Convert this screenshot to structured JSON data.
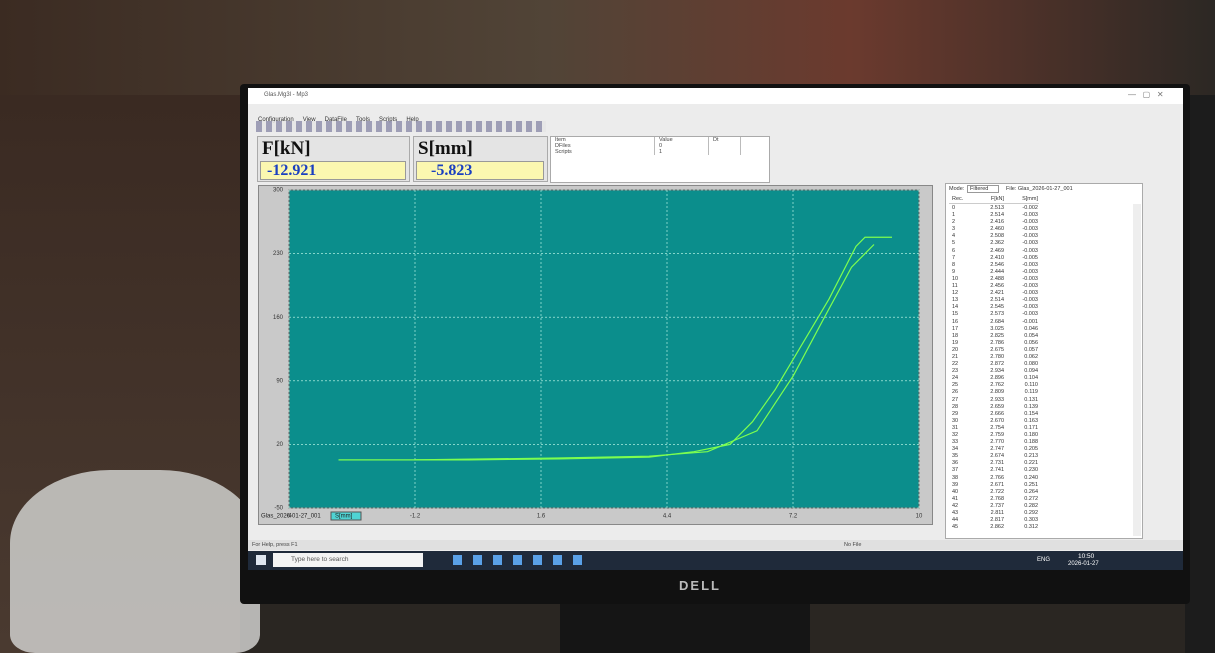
{
  "window": {
    "title": "Glas.Mg3l - Mp3",
    "menu": [
      "Configuration",
      "View",
      "DataFile",
      "Tools",
      "Scripts",
      "Help"
    ]
  },
  "displays": [
    {
      "label": "F[kN]",
      "value": "-12.921"
    },
    {
      "label": "S[mm]",
      "value": "-5.823"
    }
  ],
  "info_table": {
    "headers": [
      "Item",
      "Value",
      "Dt"
    ],
    "rows": [
      [
        "DFiles",
        "0"
      ],
      [
        "Scripts",
        "1"
      ]
    ]
  },
  "chart_data": {
    "type": "line",
    "xlim": [
      -4,
      10
    ],
    "ylim": [
      -50,
      300
    ],
    "xticks": [
      -4,
      -1.2,
      1.6,
      4.4,
      7.2,
      10
    ],
    "yticks": [
      -50,
      20,
      90,
      160,
      230,
      300
    ],
    "grid": true,
    "background": "#0b8e8c",
    "file_label": "Glas_2026-01-27_001",
    "channel_label": "S[mm]",
    "series": [
      {
        "color": "#7dff4f",
        "x": [
          -2.9,
          0,
          2,
          4,
          5,
          5.8,
          6.3,
          6.8,
          7.4,
          8,
          8.6,
          8.8,
          9.4
        ],
        "values": [
          3,
          3,
          4,
          6,
          12,
          20,
          45,
          80,
          130,
          180,
          238,
          248,
          248
        ]
      },
      {
        "color": "#7dff4f",
        "x": [
          -1.2,
          2,
          4,
          5.3,
          6.4,
          7.2,
          7.9,
          8.5,
          9.0
        ],
        "values": [
          3,
          5,
          7,
          12,
          35,
          95,
          160,
          215,
          240
        ]
      }
    ]
  },
  "data_table": {
    "mode_label": "Mode:",
    "mode": "Filtered",
    "file": "File: Glas_2026-01-27_001",
    "headers": [
      "Rec.",
      "F[kN]",
      "S[mm]"
    ],
    "rows": [
      [
        "0",
        "2.513",
        "-0.002"
      ],
      [
        "1",
        "2.514",
        "-0.003"
      ],
      [
        "2",
        "2.416",
        "-0.003"
      ],
      [
        "3",
        "2.460",
        "-0.003"
      ],
      [
        "4",
        "2.508",
        "-0.003"
      ],
      [
        "5",
        "2.362",
        "-0.003"
      ],
      [
        "6",
        "2.469",
        "-0.003"
      ],
      [
        "7",
        "2.410",
        "-0.005"
      ],
      [
        "8",
        "2.546",
        "-0.003"
      ],
      [
        "9",
        "2.444",
        "-0.003"
      ],
      [
        "10",
        "2.488",
        "-0.003"
      ],
      [
        "11",
        "2.456",
        "-0.003"
      ],
      [
        "12",
        "2.421",
        "-0.003"
      ],
      [
        "13",
        "2.514",
        "-0.003"
      ],
      [
        "14",
        "2.545",
        "-0.003"
      ],
      [
        "15",
        "2.573",
        "-0.003"
      ],
      [
        "16",
        "2.684",
        "-0.001"
      ],
      [
        "17",
        "3.025",
        "0.046"
      ],
      [
        "18",
        "2.825",
        "0.054"
      ],
      [
        "19",
        "2.786",
        "0.056"
      ],
      [
        "20",
        "2.675",
        "0.057"
      ],
      [
        "21",
        "2.780",
        "0.062"
      ],
      [
        "22",
        "2.872",
        "0.080"
      ],
      [
        "23",
        "2.934",
        "0.094"
      ],
      [
        "24",
        "2.896",
        "0.104"
      ],
      [
        "25",
        "2.762",
        "0.110"
      ],
      [
        "26",
        "2.809",
        "0.119"
      ],
      [
        "27",
        "2.933",
        "0.131"
      ],
      [
        "28",
        "2.659",
        "0.139"
      ],
      [
        "29",
        "2.666",
        "0.154"
      ],
      [
        "30",
        "2.670",
        "0.163"
      ],
      [
        "31",
        "2.754",
        "0.171"
      ],
      [
        "32",
        "2.759",
        "0.180"
      ],
      [
        "33",
        "2.770",
        "0.188"
      ],
      [
        "34",
        "2.747",
        "0.205"
      ],
      [
        "35",
        "2.674",
        "0.213"
      ],
      [
        "36",
        "2.731",
        "0.221"
      ],
      [
        "37",
        "2.741",
        "0.230"
      ],
      [
        "38",
        "2.766",
        "0.240"
      ],
      [
        "39",
        "2.671",
        "0.251"
      ],
      [
        "40",
        "2.722",
        "0.264"
      ],
      [
        "41",
        "2.768",
        "0.272"
      ],
      [
        "42",
        "2.737",
        "0.282"
      ],
      [
        "43",
        "2.811",
        "0.292"
      ],
      [
        "44",
        "2.817",
        "0.303"
      ],
      [
        "45",
        "2.862",
        "0.312"
      ]
    ]
  },
  "status_bar": [
    "For Help, press F1",
    "No File"
  ],
  "taskbar": {
    "search": "Type here to search",
    "language": "ENG",
    "time": "10:50",
    "date": "2026-01-27"
  },
  "monitor_brand": "DELL"
}
